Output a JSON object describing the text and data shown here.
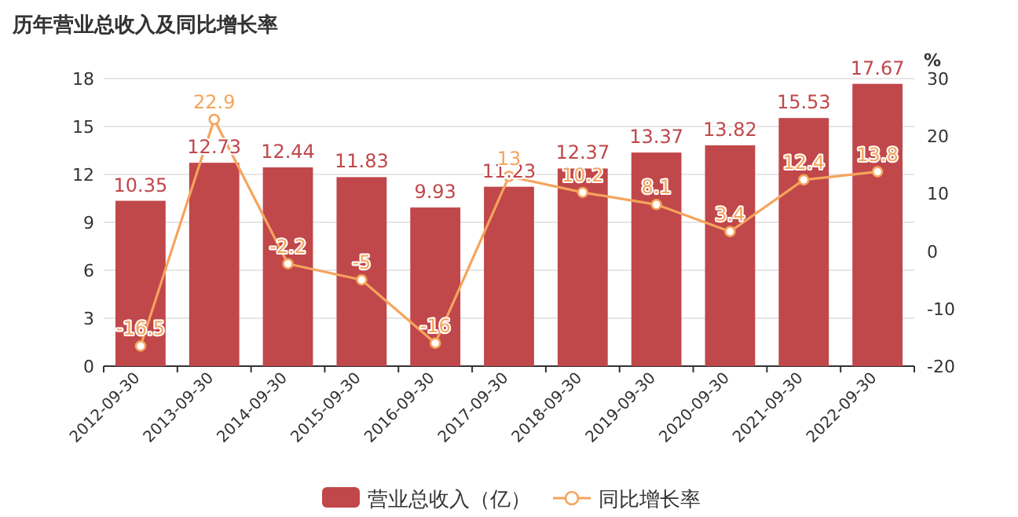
{
  "chart_data": {
    "type": "bar",
    "title": "历年营业总收入及同比增长率",
    "categories": [
      "2012-09-30",
      "2013-09-30",
      "2014-09-30",
      "2015-09-30",
      "2016-09-30",
      "2017-09-30",
      "2018-09-30",
      "2019-09-30",
      "2020-09-30",
      "2021-09-30",
      "2022-09-30"
    ],
    "series": [
      {
        "name": "营业总收入（亿）",
        "color": "#c0474a",
        "values": [
          10.35,
          12.73,
          12.44,
          11.83,
          9.93,
          11.23,
          12.37,
          13.37,
          13.82,
          15.53,
          17.67
        ]
      },
      {
        "name": "同比增长率",
        "type": "line",
        "axis": "y2",
        "marker": "circle",
        "color": "#f5a45d",
        "values": [
          -16.5,
          22.9,
          -2.2,
          -5,
          -16,
          13,
          10.2,
          8.1,
          3.4,
          12.4,
          13.8
        ]
      }
    ],
    "ylim": [
      0,
      18
    ],
    "yticks": [
      0,
      3,
      6,
      9,
      12,
      15,
      18
    ],
    "y2lim": [
      -20,
      30
    ],
    "y2ticks": [
      -20,
      -10,
      0,
      10,
      20,
      30
    ],
    "y2label": "%",
    "grid": "y",
    "legend": "bottom",
    "data_labels": true
  }
}
